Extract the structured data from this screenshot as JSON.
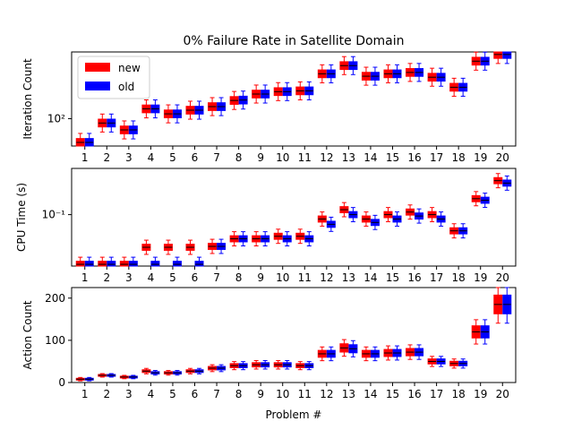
{
  "title": "0% Failure Rate in Satellite Domain",
  "xlabel": "Problem #",
  "legend": {
    "placement": "upper-left",
    "entries": [
      {
        "label": "new",
        "color": "#ff0000"
      },
      {
        "label": "old",
        "color": "#0000ff"
      }
    ]
  },
  "colors": {
    "new": "#ff0000",
    "old": "#0000ff"
  },
  "problems": [
    "1",
    "2",
    "3",
    "4",
    "5",
    "6",
    "7",
    "8",
    "9",
    "10",
    "11",
    "12",
    "13",
    "14",
    "15",
    "16",
    "17",
    "18",
    "19",
    "20"
  ],
  "chart_data": [
    {
      "type": "box",
      "ylabel": "Iteration Count",
      "scale": "log",
      "ylim": [
        45,
        700
      ],
      "yticks": [
        {
          "value": 100,
          "label": "10²"
        }
      ],
      "series": [
        {
          "name": "new",
          "medians": [
            50,
            88,
            72,
            133,
            115,
            128,
            142,
            170,
            205,
            220,
            225,
            370,
            470,
            345,
            370,
            385,
            335,
            250,
            535,
            650
          ]
        },
        {
          "name": "old",
          "medians": [
            50,
            88,
            72,
            133,
            115,
            128,
            142,
            172,
            205,
            220,
            225,
            370,
            470,
            345,
            370,
            385,
            335,
            250,
            535,
            650
          ]
        }
      ]
    },
    {
      "type": "box",
      "ylabel": "CPU Time (s)",
      "scale": "log",
      "ylim": [
        0.015,
        0.55
      ],
      "yticks": [
        {
          "value": 0.1,
          "label": "10⁻¹"
        }
      ],
      "series": [
        {
          "name": "new",
          "medians": [
            0.016,
            0.016,
            0.016,
            0.03,
            0.03,
            0.03,
            0.031,
            0.041,
            0.041,
            0.045,
            0.045,
            0.085,
            0.12,
            0.085,
            0.1,
            0.11,
            0.1,
            0.055,
            0.18,
            0.35
          ]
        },
        {
          "name": "old",
          "medians": [
            0.016,
            0.016,
            0.016,
            0.016,
            0.016,
            0.016,
            0.031,
            0.041,
            0.041,
            0.041,
            0.041,
            0.07,
            0.1,
            0.075,
            0.085,
            0.095,
            0.085,
            0.055,
            0.17,
            0.32
          ]
        }
      ]
    },
    {
      "type": "box",
      "ylabel": "Action Count",
      "scale": "linear",
      "ylim": [
        0,
        225
      ],
      "yticks": [
        {
          "value": 0,
          "label": "0"
        },
        {
          "value": 100,
          "label": "100"
        },
        {
          "value": 200,
          "label": "200"
        }
      ],
      "series": [
        {
          "name": "new",
          "medians": [
            8,
            17,
            13,
            27,
            23,
            27,
            34,
            40,
            42,
            42,
            40,
            68,
            82,
            68,
            70,
            72,
            50,
            45,
            120,
            185
          ]
        },
        {
          "name": "old",
          "medians": [
            8,
            17,
            13,
            23,
            23,
            27,
            34,
            40,
            42,
            42,
            40,
            68,
            80,
            68,
            70,
            72,
            50,
            45,
            120,
            185
          ]
        }
      ]
    }
  ]
}
